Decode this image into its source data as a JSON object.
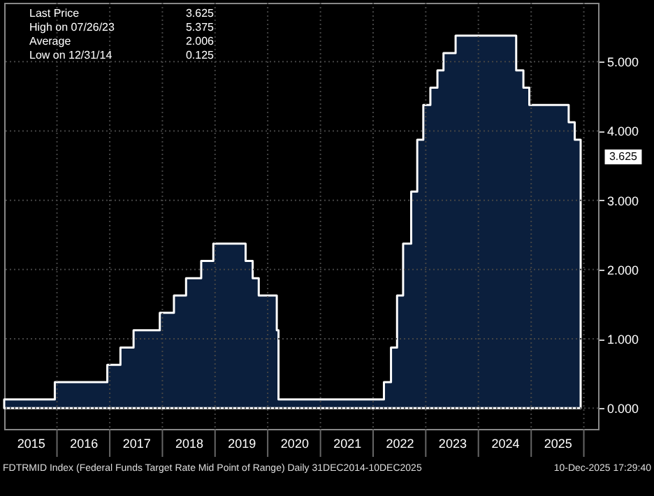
{
  "chart_data": {
    "type": "area",
    "line_style": "solid",
    "marker": "none",
    "grid": true,
    "x": [
      "2014-12-31",
      "2015-12-17",
      "2016-12-15",
      "2017-03-16",
      "2017-06-15",
      "2017-12-14",
      "2018-03-22",
      "2018-06-14",
      "2018-09-27",
      "2018-12-20",
      "2019-08-01",
      "2019-09-19",
      "2019-10-31",
      "2020-03-04",
      "2020-03-16",
      "2022-03-17",
      "2022-05-05",
      "2022-06-16",
      "2022-07-28",
      "2022-09-22",
      "2022-11-03",
      "2022-12-15",
      "2023-02-02",
      "2023-03-23",
      "2023-05-04",
      "2023-07-27",
      "2024-09-19",
      "2024-11-08",
      "2024-12-19",
      "2025-09-18",
      "2025-10-30",
      "2025-12-10"
    ],
    "series": [
      {
        "color": "#0b1f3d",
        "values": [
          0.125,
          0.375,
          0.625,
          0.875,
          1.125,
          1.375,
          1.625,
          1.875,
          2.125,
          2.375,
          2.125,
          1.875,
          1.625,
          1.125,
          0.125,
          0.375,
          0.875,
          1.625,
          2.375,
          3.125,
          3.875,
          4.375,
          4.625,
          4.875,
          5.125,
          5.375,
          4.875,
          4.625,
          4.375,
          4.125,
          3.875,
          3.625
        ]
      }
    ],
    "xlim": [
      "2014-12-31",
      "2026-04-10"
    ],
    "xticks": [
      {
        "value": "2015-07-02",
        "label": "2015"
      },
      {
        "value": "2016-01-01",
        "label": null
      },
      {
        "value": "2016-07-02",
        "label": "2016"
      },
      {
        "value": "2017-01-01",
        "label": null
      },
      {
        "value": "2017-07-02",
        "label": "2017"
      },
      {
        "value": "2018-01-01",
        "label": null
      },
      {
        "value": "2018-07-02",
        "label": "2018"
      },
      {
        "value": "2019-01-01",
        "label": null
      },
      {
        "value": "2019-07-02",
        "label": "2019"
      },
      {
        "value": "2020-01-01",
        "label": null
      },
      {
        "value": "2020-07-02",
        "label": "2020"
      },
      {
        "value": "2021-01-01",
        "label": null
      },
      {
        "value": "2021-07-02",
        "label": "2021"
      },
      {
        "value": "2022-01-01",
        "label": null
      },
      {
        "value": "2022-07-02",
        "label": "2022"
      },
      {
        "value": "2023-01-01",
        "label": null
      },
      {
        "value": "2023-07-02",
        "label": "2023"
      },
      {
        "value": "2024-01-01",
        "label": null
      },
      {
        "value": "2024-07-02",
        "label": "2024"
      },
      {
        "value": "2025-01-01",
        "label": null
      },
      {
        "value": "2025-07-02",
        "label": "2025"
      },
      {
        "value": "2026-01-01",
        "label": null
      }
    ],
    "ylim": [
      -0.3,
      5.85
    ],
    "yticks": [
      {
        "value": 0,
        "label": "0.000"
      },
      {
        "value": 1,
        "label": "1.000"
      },
      {
        "value": 2,
        "label": "2.000"
      },
      {
        "value": 3,
        "label": "3.000"
      },
      {
        "value": 4,
        "label": "4.000"
      },
      {
        "value": 5,
        "label": "5.000"
      }
    ],
    "annotations": [
      "Last Price 3.625",
      "High on 07/26/23 5.375",
      "Average 2.006",
      "Low on 12/31/14 0.125",
      {
        "text": "3.625",
        "x": "2025-12-10",
        "y": 3.625
      },
      "FDTRMID Index (Federal Funds Target Rate Mid Point of Range) Daily 31DEC2014-10DEC2025",
      "10-Dec-2025 17:29:40"
    ]
  }
}
